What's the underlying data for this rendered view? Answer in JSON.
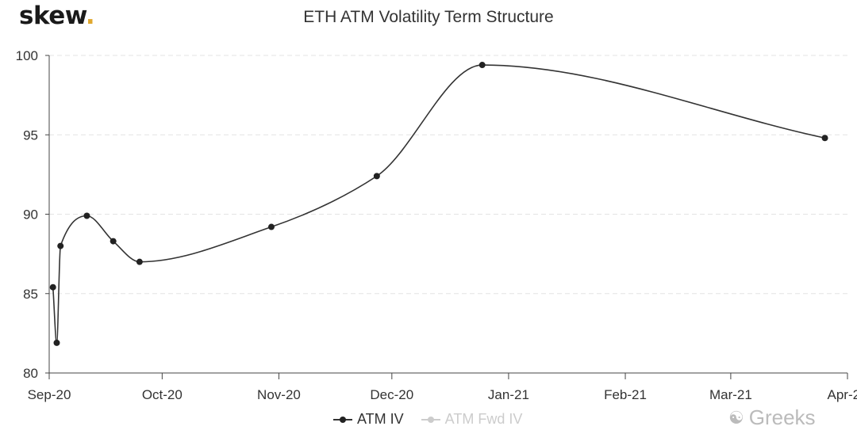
{
  "brand": {
    "name": "skew",
    "dot": "."
  },
  "watermark": "Greeks",
  "chart_data": {
    "type": "line",
    "title": "ETH ATM Volatility Term Structure",
    "xlabel": "",
    "ylabel": "",
    "x_ticks": [
      "Sep-20",
      "Oct-20",
      "Nov-20",
      "Dec-20",
      "Jan-21",
      "Feb-21",
      "Mar-21",
      "Apr-21"
    ],
    "x_tick_dates": [
      "2020-09-01",
      "2020-10-01",
      "2020-11-01",
      "2020-12-01",
      "2021-01-01",
      "2021-02-01",
      "2021-03-01",
      "2021-04-01"
    ],
    "y_ticks": [
      80,
      85,
      90,
      95,
      100
    ],
    "ylim": [
      80,
      100
    ],
    "xlim": [
      "2020-09-01",
      "2021-04-01"
    ],
    "grid": "horizontal dashed",
    "legend_position": "bottom",
    "series": [
      {
        "name": "ATM IV",
        "color": "#222222",
        "visible": true,
        "points": [
          {
            "x": "2020-09-02",
            "y": 85.4
          },
          {
            "x": "2020-09-03",
            "y": 81.9
          },
          {
            "x": "2020-09-04",
            "y": 88.0
          },
          {
            "x": "2020-09-11",
            "y": 89.9
          },
          {
            "x": "2020-09-18",
            "y": 88.3
          },
          {
            "x": "2020-09-25",
            "y": 87.0
          },
          {
            "x": "2020-10-30",
            "y": 89.2
          },
          {
            "x": "2020-11-27",
            "y": 92.4
          },
          {
            "x": "2020-12-25",
            "y": 99.4
          },
          {
            "x": "2021-03-26",
            "y": 94.8
          }
        ]
      },
      {
        "name": "ATM Fwd IV",
        "color": "#cccccc",
        "visible": false,
        "points": []
      }
    ]
  }
}
